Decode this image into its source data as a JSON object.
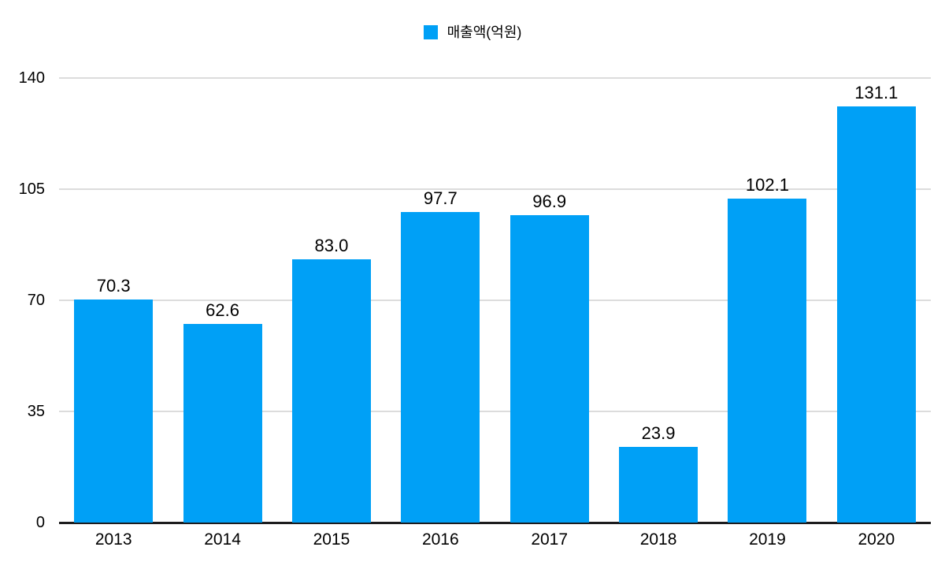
{
  "chart_data": {
    "type": "bar",
    "title": "",
    "xlabel": "",
    "ylabel": "",
    "legend": "매출액(억원)",
    "legend_position": "top-center",
    "categories": [
      "2013",
      "2014",
      "2015",
      "2016",
      "2017",
      "2018",
      "2019",
      "2020"
    ],
    "values": [
      70.3,
      62.6,
      83.0,
      97.7,
      96.9,
      23.9,
      102.1,
      131.1
    ],
    "value_labels": [
      "70.3",
      "62.6",
      "83.0",
      "97.7",
      "96.9",
      "23.9",
      "102.1",
      "131.1"
    ],
    "ylim": [
      0,
      140
    ],
    "yticks": [
      0,
      35,
      70,
      105,
      140
    ],
    "grid": true,
    "colors": {
      "bar": "#00a0f6",
      "gridline": "#dcdcdc",
      "axis_line": "#1c1c1e",
      "text": "#000000"
    }
  }
}
